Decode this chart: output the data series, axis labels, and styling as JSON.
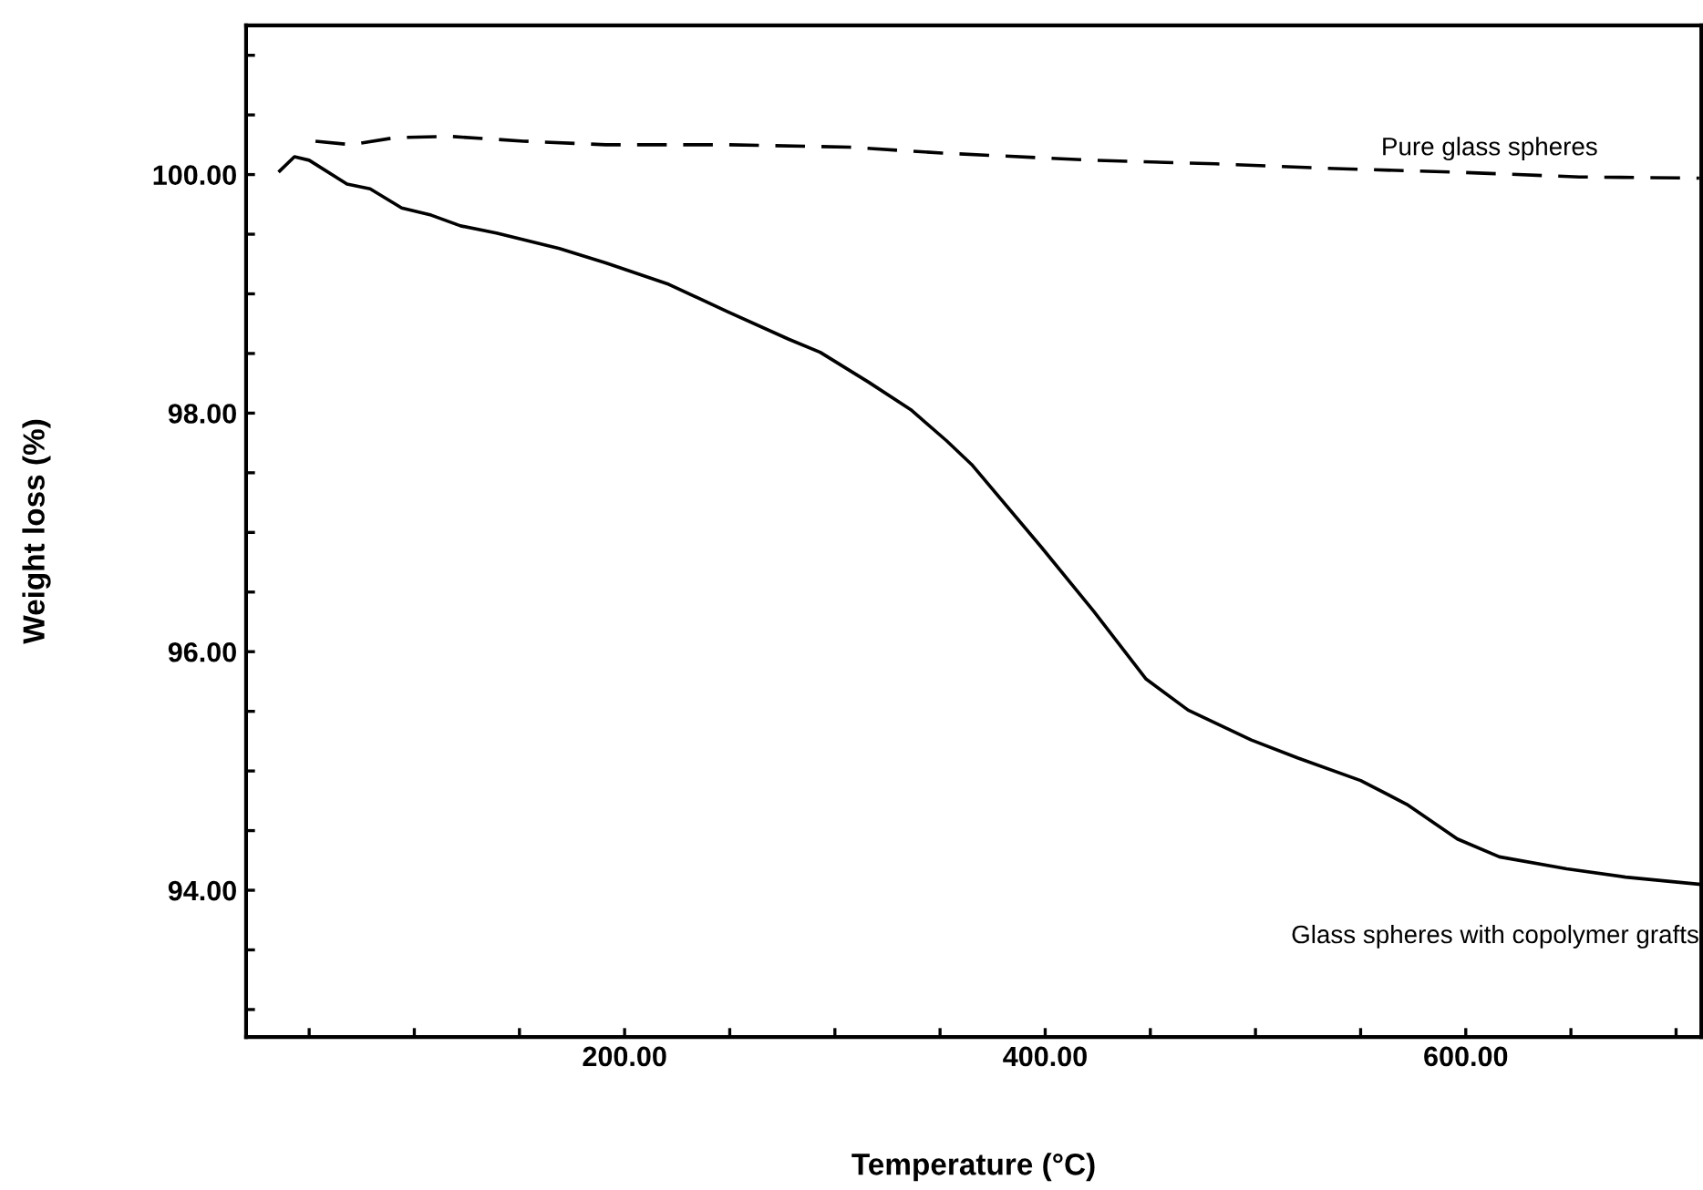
{
  "chart_data": {
    "type": "line",
    "xlabel": "Temperature (°C)",
    "ylabel": "Weight loss (%)",
    "xlim": [
      20,
      712
    ],
    "ylim": [
      92.77,
      101.25
    ],
    "xticks": [
      {
        "value": 50,
        "label": null
      },
      {
        "value": 100,
        "label": null
      },
      {
        "value": 150,
        "label": null
      },
      {
        "value": 200,
        "label": "200.00"
      },
      {
        "value": 250,
        "label": null
      },
      {
        "value": 300,
        "label": null
      },
      {
        "value": 350,
        "label": null
      },
      {
        "value": 400,
        "label": "400.00"
      },
      {
        "value": 450,
        "label": null
      },
      {
        "value": 500,
        "label": null
      },
      {
        "value": 550,
        "label": null
      },
      {
        "value": 600,
        "label": "600.00"
      },
      {
        "value": 650,
        "label": null
      },
      {
        "value": 700,
        "label": null
      }
    ],
    "yticks": [
      {
        "value": 93,
        "label": null
      },
      {
        "value": 93.5,
        "label": null
      },
      {
        "value": 94,
        "label": "94.00"
      },
      {
        "value": 94.5,
        "label": null
      },
      {
        "value": 95,
        "label": null
      },
      {
        "value": 95.5,
        "label": null
      },
      {
        "value": 96,
        "label": "96.00"
      },
      {
        "value": 96.5,
        "label": null
      },
      {
        "value": 97,
        "label": null
      },
      {
        "value": 97.5,
        "label": null
      },
      {
        "value": 98,
        "label": "98.00"
      },
      {
        "value": 98.5,
        "label": null
      },
      {
        "value": 99,
        "label": null
      },
      {
        "value": 99.5,
        "label": null
      },
      {
        "value": 100,
        "label": "100.00"
      },
      {
        "value": 100.5,
        "label": null
      },
      {
        "value": 101,
        "label": null
      }
    ],
    "grid": false,
    "legend": false,
    "marker": "none",
    "series": [
      {
        "name": "Pure glass spheres",
        "color": "#000000",
        "line_style": "dashed",
        "x": [
          53,
          70,
          91,
          117,
          152,
          191,
          249,
          307,
          351,
          423,
          481,
          538,
          596,
          654,
          711
        ],
        "values": [
          100.28,
          100.25,
          100.31,
          100.32,
          100.28,
          100.25,
          100.25,
          100.23,
          100.18,
          100.12,
          100.09,
          100.05,
          100.02,
          99.98,
          99.97
        ]
      },
      {
        "name": "Glass spheres with copolymer grafts",
        "color": "#000000",
        "line_style": "solid",
        "x": [
          36,
          43,
          50,
          68,
          79,
          94,
          108,
          122,
          139,
          169,
          191,
          221,
          249,
          278,
          293,
          316,
          336,
          353,
          365,
          398,
          423,
          448,
          468,
          498,
          520,
          550,
          572,
          596,
          616,
          648,
          676,
          711
        ],
        "values": [
          100.03,
          100.15,
          100.12,
          99.92,
          99.88,
          99.72,
          99.66,
          99.57,
          99.51,
          99.38,
          99.26,
          99.08,
          98.85,
          98.62,
          98.51,
          98.26,
          98.03,
          97.77,
          97.57,
          96.88,
          96.34,
          95.77,
          95.51,
          95.26,
          95.11,
          94.92,
          94.72,
          94.43,
          94.28,
          94.18,
          94.11,
          94.05
        ]
      }
    ]
  }
}
